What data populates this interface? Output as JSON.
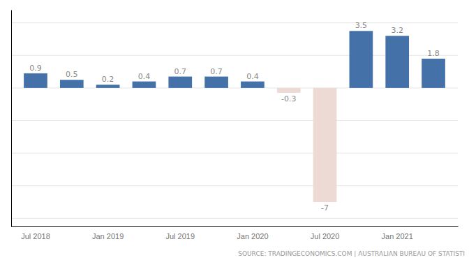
{
  "chart_data": {
    "type": "bar",
    "categories": [
      "Jul 2018",
      null,
      "Jan 2019",
      null,
      "Jul 2019",
      null,
      "Jan 2020",
      null,
      "Jul 2020",
      null,
      "Jan 2021",
      null
    ],
    "values": [
      0.9,
      0.5,
      0.2,
      0.4,
      0.7,
      0.7,
      0.4,
      -0.3,
      -7.0,
      3.5,
      3.2,
      1.8
    ],
    "colors": [
      "#4472a8",
      "#4472a8",
      "#4472a8",
      "#4472a8",
      "#4472a8",
      "#4472a8",
      "#4472a8",
      "#eedad5",
      "#eedad5",
      "#4472a8",
      "#4472a8",
      "#4472a8"
    ],
    "ylim": [
      -8.5,
      4.8
    ],
    "yticks": [
      -8,
      -6,
      -4,
      -2,
      0,
      2,
      4
    ],
    "grid": true,
    "data_labels": true,
    "tick_labels": "x",
    "annotations": [
      "SOURCE: TRADINGECONOMICS.COM | AUSTRALIAN BUREAU OF STATISTI"
    ]
  }
}
